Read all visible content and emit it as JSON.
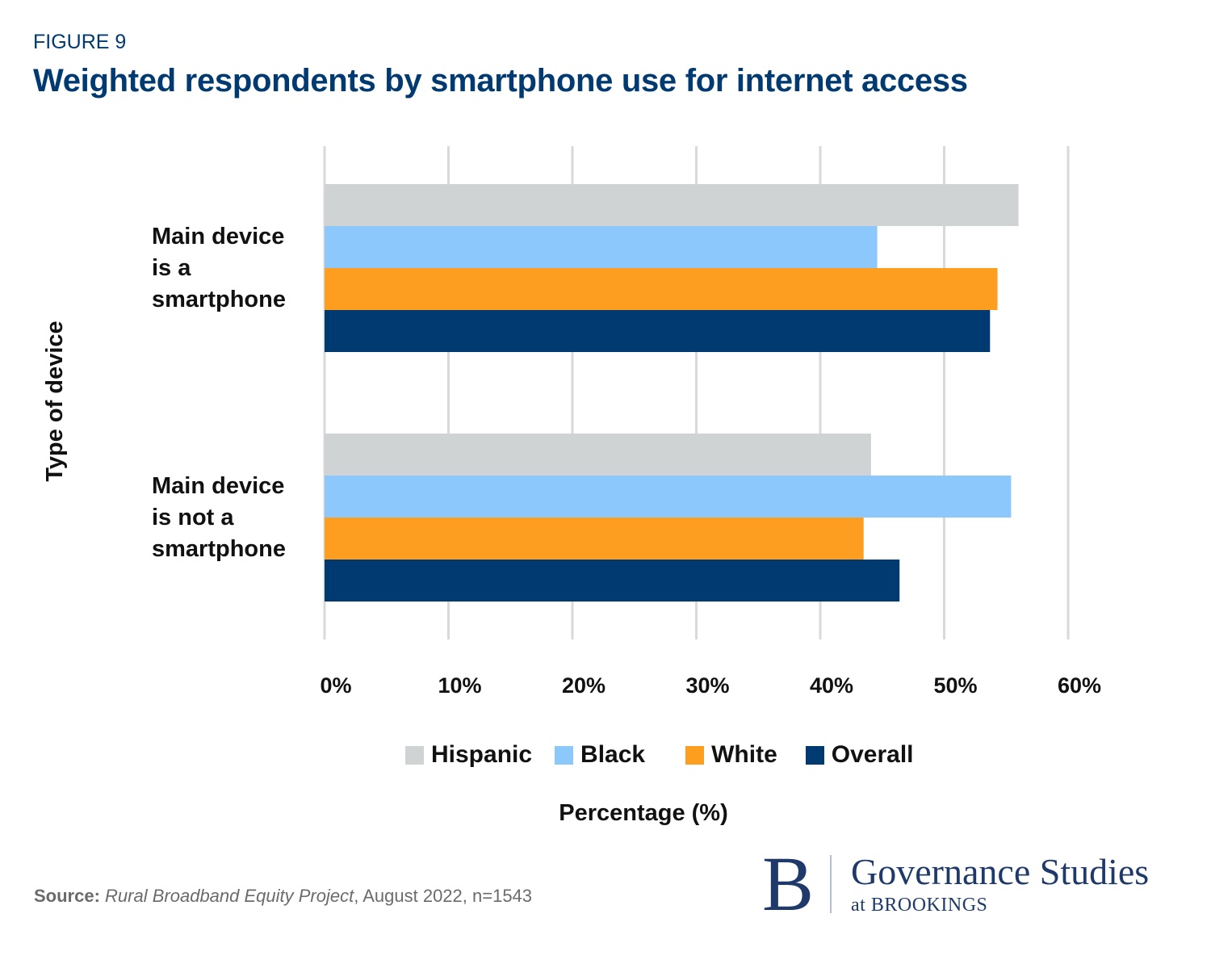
{
  "figure_label": "FIGURE 9",
  "title": "Weighted respondents by smartphone use for internet access",
  "chart_data": {
    "type": "bar",
    "orientation": "horizontal",
    "title": "Weighted respondents by smartphone use for internet access",
    "xlabel": "Percentage (%)",
    "ylabel": "Type of device",
    "categories": [
      "Main device is a smartphone",
      "Main device is not a smartphone"
    ],
    "category_lines": [
      [
        "Main device",
        "is a",
        "smartphone"
      ],
      [
        "Main device",
        "is not a",
        "smartphone"
      ]
    ],
    "series": [
      {
        "name": "Hispanic",
        "color": "#d0d3d4",
        "values": [
          56.0,
          44.1
        ]
      },
      {
        "name": "Black",
        "color": "#8dc8fd",
        "values": [
          44.6,
          55.4
        ]
      },
      {
        "name": "White",
        "color": "#fd9e20",
        "values": [
          54.3,
          43.5
        ]
      },
      {
        "name": "Overall",
        "color": "#003a70",
        "values": [
          53.7,
          46.4
        ]
      }
    ],
    "xlim": [
      0,
      60
    ],
    "xticks": [
      0,
      10,
      20,
      30,
      40,
      50,
      60
    ],
    "xtick_labels": [
      "0%",
      "10%",
      "20%",
      "30%",
      "40%",
      "50%",
      "60%"
    ],
    "grid": true,
    "legend_position": "bottom"
  },
  "source": {
    "label": "Source:",
    "title": "Rural Broadband Equity Project",
    "rest": ", August 2022, n=1543"
  },
  "logo": {
    "letter": "B",
    "main": "Governance Studies",
    "sub": "at BROOKINGS"
  }
}
